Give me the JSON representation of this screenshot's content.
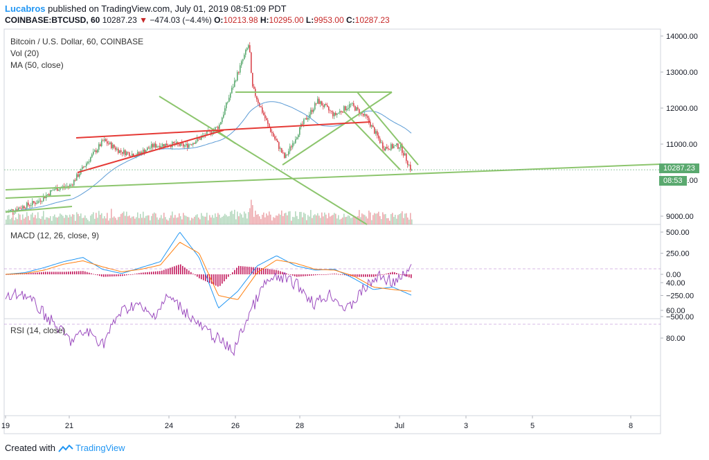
{
  "header": {
    "author": "Lucabros",
    "published": "published on TradingView.com, July 01, 2019 08:51:09 PDT",
    "symbol": "COINBASE:BTCUSD, 60",
    "last": "10287.23",
    "change": "−474.03 (−4.4%)",
    "o_label": "O:",
    "o": "10213.98",
    "h_label": "H:",
    "h": "10295.00",
    "l_label": "L:",
    "l": "9953.00",
    "c_label": "C:",
    "c": "10287.23"
  },
  "legends": {
    "main": "Bitcoin / U.S. Dollar, 60, COINBASE",
    "vol": "Vol (20)",
    "ma": "MA (50, close)",
    "macd": "MACD (12, 26, close, 9)",
    "rsi": "RSI (14, close)"
  },
  "price_tag": {
    "price": "10287.23",
    "countdown": "08:53"
  },
  "footer": {
    "created_with": "Created with",
    "brand": "TradingView"
  },
  "colors": {
    "up": "#5aa96f",
    "down": "#d9454d",
    "macd": "#2196f3",
    "signal": "#ff7f0e",
    "hist": "#c2185b",
    "rsi": "#9c4dbf",
    "trend_green": "#8cc56d",
    "trend_red": "#e53935",
    "ma": "#5b9bd5"
  },
  "chart_data": [
    {
      "type": "candlestick",
      "title": "Bitcoin / U.S. Dollar, 60, COINBASE",
      "ylim": [
        8800,
        14200
      ],
      "y_ticks": [
        "14000.00",
        "13000.00",
        "12000.00",
        "11000.00",
        "10000.00",
        "9000.00"
      ],
      "x_ticks": [
        "19",
        "21",
        "24",
        "26",
        "28",
        "Jul",
        "3",
        "5",
        "8"
      ],
      "price_path": [
        {
          "x": "Jun 19 00:00",
          "y": 9100
        },
        {
          "x": "Jun 20 00:00",
          "y": 9400
        },
        {
          "x": "Jun 20 12:00",
          "y": 9750
        },
        {
          "x": "Jun 21 00:00",
          "y": 9850
        },
        {
          "x": "Jun 21 12:00",
          "y": 10500
        },
        {
          "x": "Jun 22 00:00",
          "y": 11100
        },
        {
          "x": "Jun 22 12:00",
          "y": 10800
        },
        {
          "x": "Jun 23 00:00",
          "y": 10700
        },
        {
          "x": "Jun 23 12:00",
          "y": 10950
        },
        {
          "x": "Jun 24 00:00",
          "y": 11000
        },
        {
          "x": "Jun 24 12:00",
          "y": 10950
        },
        {
          "x": "Jun 25 00:00",
          "y": 11200
        },
        {
          "x": "Jun 25 12:00",
          "y": 11500
        },
        {
          "x": "Jun 26 00:00",
          "y": 12800
        },
        {
          "x": "Jun 26 10:00",
          "y": 13800
        },
        {
          "x": "Jun 26 12:00",
          "y": 12600
        },
        {
          "x": "Jun 27 00:00",
          "y": 11500
        },
        {
          "x": "Jun 27 12:00",
          "y": 10600
        },
        {
          "x": "Jun 28 00:00",
          "y": 11500
        },
        {
          "x": "Jun 28 12:00",
          "y": 12200
        },
        {
          "x": "Jun 29 00:00",
          "y": 11800
        },
        {
          "x": "Jun 29 12:00",
          "y": 12100
        },
        {
          "x": "Jun 30 00:00",
          "y": 11700
        },
        {
          "x": "Jun 30 12:00",
          "y": 10900
        },
        {
          "x": "Jul 1 00:00",
          "y": 10950
        },
        {
          "x": "Jul 1 08:00",
          "y": 10287.23
        }
      ],
      "last_price": 10287.23
    },
    {
      "type": "line",
      "title": "MACD (12, 26, close, 9)",
      "ylim": [
        -500,
        500
      ],
      "y_ticks": [
        "500.00",
        "250.00",
        "0.00",
        "−250.00",
        "−500.00"
      ],
      "series": [
        {
          "name": "MACD",
          "values": [
            0,
            20,
            80,
            150,
            200,
            60,
            10,
            80,
            150,
            500,
            200,
            -400,
            -200,
            100,
            220,
            100,
            50,
            60,
            -50,
            -180,
            -150,
            -250
          ]
        },
        {
          "name": "Signal",
          "values": [
            0,
            10,
            50,
            120,
            160,
            90,
            30,
            60,
            110,
            380,
            250,
            -250,
            -300,
            20,
            170,
            130,
            60,
            50,
            -20,
            -150,
            -180,
            -200
          ]
        }
      ]
    },
    {
      "type": "line",
      "title": "RSI (14, close)",
      "ylim": [
        20,
        90
      ],
      "y_ticks": [
        "80.00",
        "60.00",
        "40.00"
      ],
      "band": [
        30,
        70
      ],
      "series": [
        {
          "name": "RSI",
          "values": [
            52,
            47,
            58,
            70,
            82,
            75,
            84,
            62,
            55,
            65,
            50,
            60,
            72,
            80,
            90,
            62,
            40,
            36,
            42,
            55,
            48,
            60,
            45,
            35,
            40,
            30
          ]
        }
      ]
    }
  ]
}
